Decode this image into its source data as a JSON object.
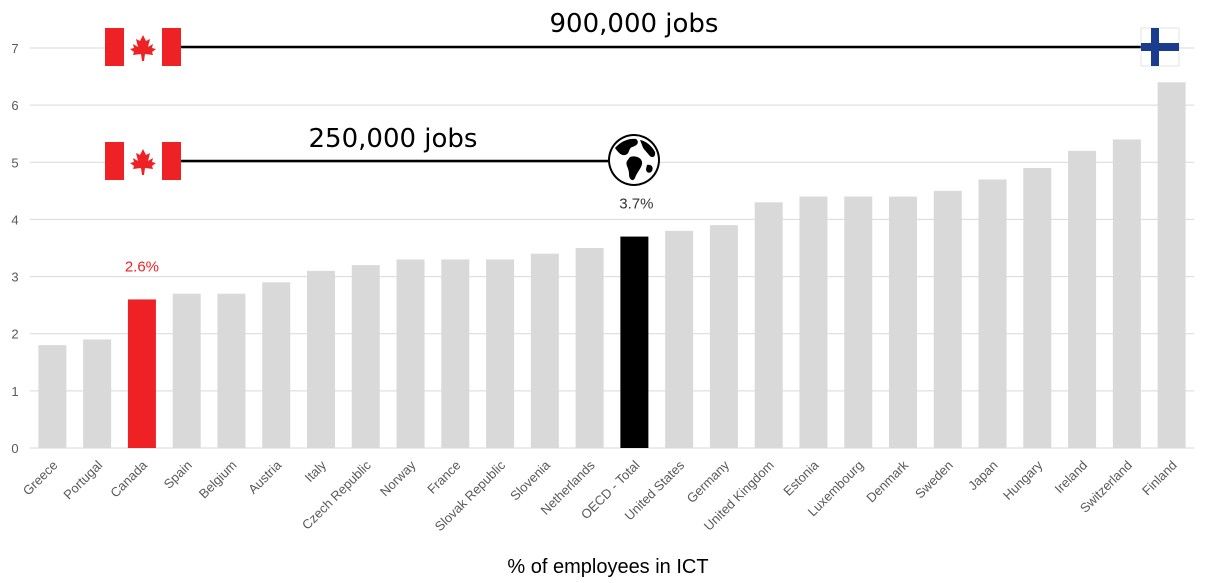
{
  "chart_data": {
    "type": "bar",
    "xlabel": "% of employees in ICT",
    "ylabel": "",
    "ylim": [
      0,
      7
    ],
    "yticks": [
      "0",
      "1",
      "2",
      "3",
      "4",
      "5",
      "6",
      "7"
    ],
    "grid": true,
    "categories": [
      "Greece",
      "Portugal",
      "Canada",
      "Spain",
      "Belgium",
      "Austria",
      "Italy",
      "Czech Republic",
      "Norway",
      "France",
      "Slovak Republic",
      "Slovenia",
      "Netherlands",
      "OECD - Total",
      "United States",
      "Germany",
      "United Kingdom",
      "Estonia",
      "Luxembourg",
      "Denmark",
      "Sweden",
      "Japan",
      "Hungary",
      "Ireland",
      "Switzerland",
      "Finland"
    ],
    "values": [
      1.8,
      1.9,
      2.6,
      2.7,
      2.7,
      2.9,
      3.1,
      3.2,
      3.3,
      3.3,
      3.3,
      3.4,
      3.5,
      3.7,
      3.8,
      3.9,
      4.3,
      4.4,
      4.4,
      4.4,
      4.5,
      4.7,
      4.9,
      5.2,
      5.4,
      6.4
    ],
    "highlight": {
      "Canada": "#ee2124",
      "OECD - Total": "#000000"
    },
    "default_color": "#d9d9d9",
    "data_labels": {
      "Canada": "2.6%",
      "OECD - Total": "3.7%"
    },
    "annotations": [
      {
        "text": "900,000 jobs",
        "from": "Canada flag",
        "to": "Finland flag",
        "y": 7
      },
      {
        "text": "250,000 jobs",
        "from": "Canada flag",
        "to": "globe icon",
        "y": 5
      }
    ]
  },
  "icons": {
    "canada_flag": "canada-flag-icon",
    "finland_flag": "finland-flag-icon",
    "globe": "globe-icon"
  },
  "colors": {
    "canada_red": "#ee2124",
    "finland_blue": "#1a3c8f",
    "bar_gray": "#d9d9d9",
    "oecd_black": "#000000"
  }
}
